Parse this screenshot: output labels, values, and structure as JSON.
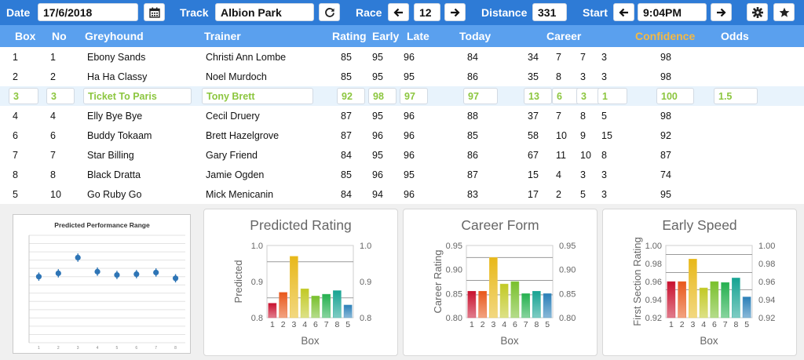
{
  "toolbar": {
    "date_label": "Date",
    "date_value": "17/6/2018",
    "calendar_icon": "calendar-icon",
    "track_label": "Track",
    "track_value": "Albion Park",
    "refresh_icon": "refresh-icon",
    "race_label": "Race",
    "race_prev_icon": "arrow-left-icon",
    "race_value": "12",
    "race_next_icon": "arrow-right-icon",
    "distance_label": "Distance",
    "distance_value": "331",
    "start_label": "Start",
    "start_prev_icon": "arrow-left-icon",
    "start_value": "9:04PM",
    "start_next_icon": "arrow-right-icon",
    "settings_icon": "gear-icon",
    "favorite_icon": "star-icon"
  },
  "table": {
    "headers": {
      "box": "Box",
      "no": "No",
      "greyhound": "Greyhound",
      "trainer": "Trainer",
      "rating": "Rating",
      "early": "Early",
      "late": "Late",
      "today": "Today",
      "career": "Career",
      "confidence": "Confidence",
      "odds": "Odds"
    },
    "confidence_color": "#f5b942",
    "selected_text_color": "#8cc63f",
    "rows": [
      {
        "box": "1",
        "no": "1",
        "greyhound": "Ebony Sands",
        "trainer": "Christi Ann Lombe",
        "rating": "85",
        "early": "95",
        "late": "96",
        "today": "84",
        "c1": "34",
        "c2": "7",
        "c3": "7",
        "c4": "3",
        "confidence": "98",
        "odds": ""
      },
      {
        "box": "2",
        "no": "2",
        "greyhound": "Ha Ha Classy",
        "trainer": "Noel Murdoch",
        "rating": "85",
        "early": "95",
        "late": "95",
        "today": "86",
        "c1": "35",
        "c2": "8",
        "c3": "3",
        "c4": "3",
        "confidence": "98",
        "odds": ""
      },
      {
        "box": "3",
        "no": "3",
        "greyhound": "Ticket To Paris",
        "trainer": "Tony Brett",
        "rating": "92",
        "early": "98",
        "late": "97",
        "today": "97",
        "c1": "13",
        "c2": "6",
        "c3": "3",
        "c4": "1",
        "confidence": "100",
        "odds": "1.5"
      },
      {
        "box": "4",
        "no": "4",
        "greyhound": "Elly Bye Bye",
        "trainer": "Cecil Druery",
        "rating": "87",
        "early": "95",
        "late": "96",
        "today": "88",
        "c1": "37",
        "c2": "7",
        "c3": "8",
        "c4": "5",
        "confidence": "98",
        "odds": ""
      },
      {
        "box": "6",
        "no": "6",
        "greyhound": "Buddy Tokaam",
        "trainer": "Brett Hazelgrove",
        "rating": "87",
        "early": "96",
        "late": "96",
        "today": "85",
        "c1": "58",
        "c2": "10",
        "c3": "9",
        "c4": "15",
        "confidence": "92",
        "odds": ""
      },
      {
        "box": "7",
        "no": "7",
        "greyhound": "Star Billing",
        "trainer": "Gary Friend",
        "rating": "84",
        "early": "95",
        "late": "96",
        "today": "86",
        "c1": "67",
        "c2": "11",
        "c3": "10",
        "c4": "8",
        "confidence": "87",
        "odds": ""
      },
      {
        "box": "8",
        "no": "8",
        "greyhound": "Black Dratta",
        "trainer": "Jamie Ogden",
        "rating": "85",
        "early": "96",
        "late": "95",
        "today": "87",
        "c1": "15",
        "c2": "4",
        "c3": "3",
        "c4": "3",
        "confidence": "74",
        "odds": ""
      },
      {
        "box": "5",
        "no": "10",
        "greyhound": "Go Ruby Go",
        "trainer": "Mick Menicanin",
        "rating": "84",
        "early": "94",
        "late": "96",
        "today": "83",
        "c1": "17",
        "c2": "2",
        "c3": "5",
        "c4": "3",
        "confidence": "95",
        "odds": ""
      }
    ]
  },
  "chart_data": [
    {
      "type": "scatter",
      "title": "Predicted Performance Range",
      "categories": [
        "1",
        "2",
        "3",
        "4",
        "5",
        "6",
        "7",
        "8"
      ],
      "values": [
        0.3,
        0.34,
        0.53,
        0.36,
        0.32,
        0.33,
        0.35,
        0.28
      ],
      "error": [
        0.05,
        0.05,
        0.05,
        0.05,
        0.05,
        0.05,
        0.05,
        0.05
      ],
      "ylim": [
        -0.5,
        0.8
      ],
      "grid": true,
      "color": "#2e75b6"
    },
    {
      "type": "bar",
      "title": "Predicted Rating",
      "xlabel": "Box",
      "ylabel": "Predicted",
      "categories": [
        "1",
        "2",
        "3",
        "4",
        "6",
        "7",
        "8",
        "5"
      ],
      "values": [
        0.84,
        0.87,
        0.97,
        0.88,
        0.86,
        0.865,
        0.875,
        0.835
      ],
      "ylim": [
        0.8,
        1.0
      ],
      "yticks": [
        "0.8",
        "0.9",
        "1.0"
      ],
      "yticks_right": [
        "0.8",
        "0.9",
        "1.0"
      ],
      "reference_lines": [
        0.855,
        0.955
      ]
    },
    {
      "type": "bar",
      "title": "Career Form",
      "xlabel": "Box",
      "ylabel": "Career Rating",
      "categories": [
        "1",
        "2",
        "3",
        "4",
        "6",
        "7",
        "8",
        "5"
      ],
      "values": [
        0.855,
        0.855,
        0.925,
        0.87,
        0.875,
        0.85,
        0.855,
        0.85
      ],
      "ylim": [
        0.8,
        0.95
      ],
      "yticks": [
        "0.80",
        "0.85",
        "0.90",
        "0.95"
      ],
      "yticks_right": [
        "0.80",
        "0.85",
        "0.90",
        "0.95"
      ],
      "reference_lines": [
        0.8475,
        0.8775,
        0.925
      ]
    },
    {
      "type": "bar",
      "title": "Early Speed",
      "xlabel": "Box",
      "ylabel": "First Section Rating",
      "categories": [
        "1",
        "2",
        "3",
        "4",
        "6",
        "7",
        "8",
        "5"
      ],
      "values": [
        0.96,
        0.96,
        0.985,
        0.953,
        0.96,
        0.959,
        0.964,
        0.943
      ],
      "ylim": [
        0.92,
        1.0
      ],
      "yticks": [
        "0.92",
        "0.94",
        "0.96",
        "0.98",
        "1.00"
      ],
      "yticks_right": [
        "0.92",
        "0.94",
        "0.96",
        "0.98",
        "1.00"
      ],
      "reference_lines": [
        0.951,
        0.97,
        0.99
      ]
    }
  ]
}
